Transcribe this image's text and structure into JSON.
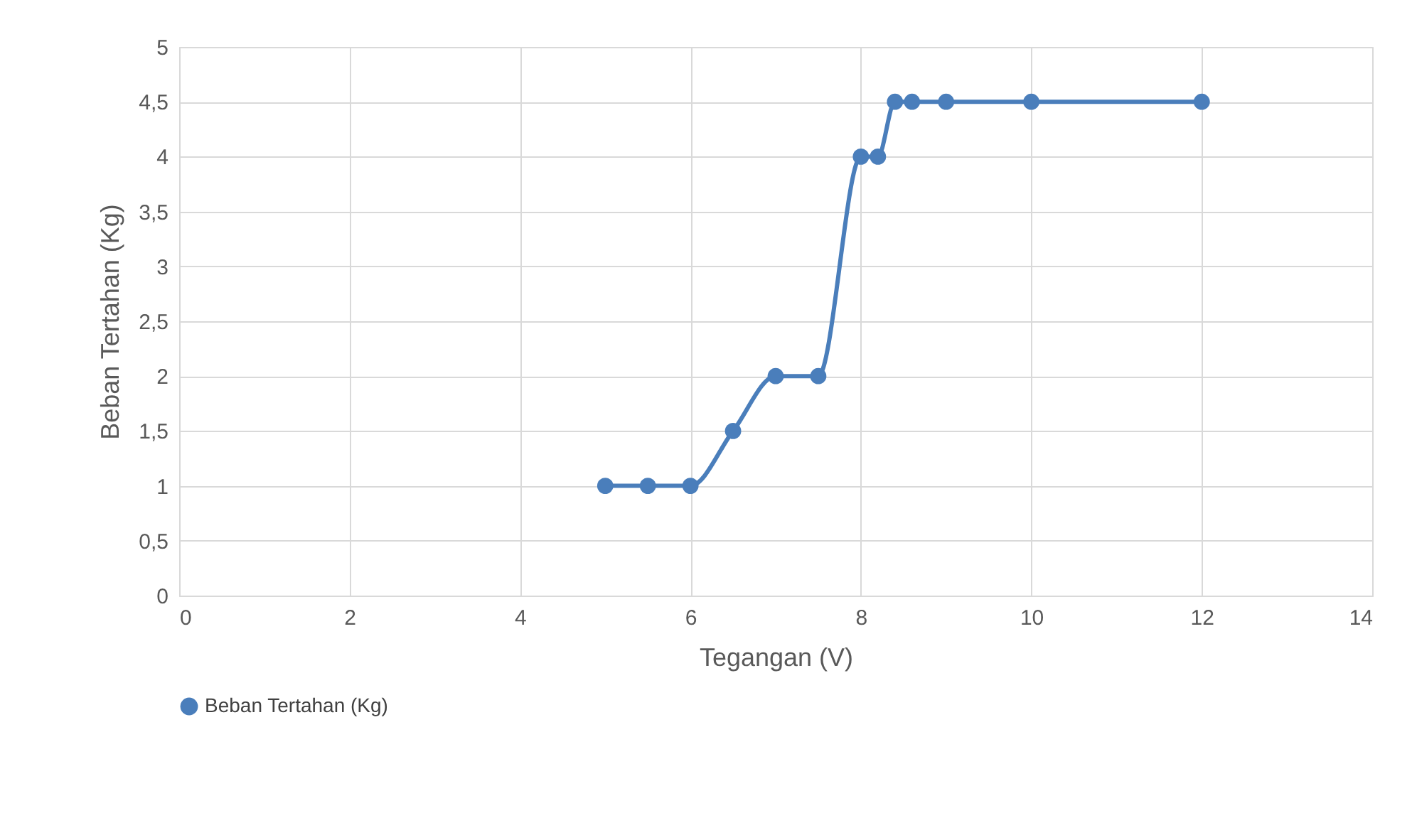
{
  "chart_data": {
    "type": "line",
    "xlabel": "Tegangan (V)",
    "ylabel": "Beban Tertahan (Kg)",
    "x": [
      5,
      5.5,
      6,
      6.5,
      7,
      7.5,
      8,
      8.2,
      8.4,
      8.6,
      9,
      10,
      12
    ],
    "series": [
      {
        "name": "Beban Tertahan (Kg)",
        "color": "#4a7ebb",
        "values": [
          1,
          1,
          1,
          1.5,
          2,
          2,
          4,
          4,
          4.5,
          4.5,
          4.5,
          4.5,
          4.5
        ]
      }
    ],
    "xlim": [
      0,
      14
    ],
    "xticks": [
      0,
      2,
      4,
      6,
      8,
      10,
      12,
      14
    ],
    "ylim": [
      0,
      5
    ],
    "yticks": [
      0,
      {
        "value": 0.5,
        "label": "0,5"
      },
      1,
      {
        "value": 1.5,
        "label": "1,5"
      },
      2,
      {
        "value": 2.5,
        "label": "2,5"
      },
      3,
      {
        "value": 3.5,
        "label": "3,5"
      },
      4,
      {
        "value": 4.5,
        "label": "4,5"
      },
      5
    ],
    "grid": true,
    "legend": "bottom",
    "marker": "circle",
    "line_style": "solid"
  }
}
